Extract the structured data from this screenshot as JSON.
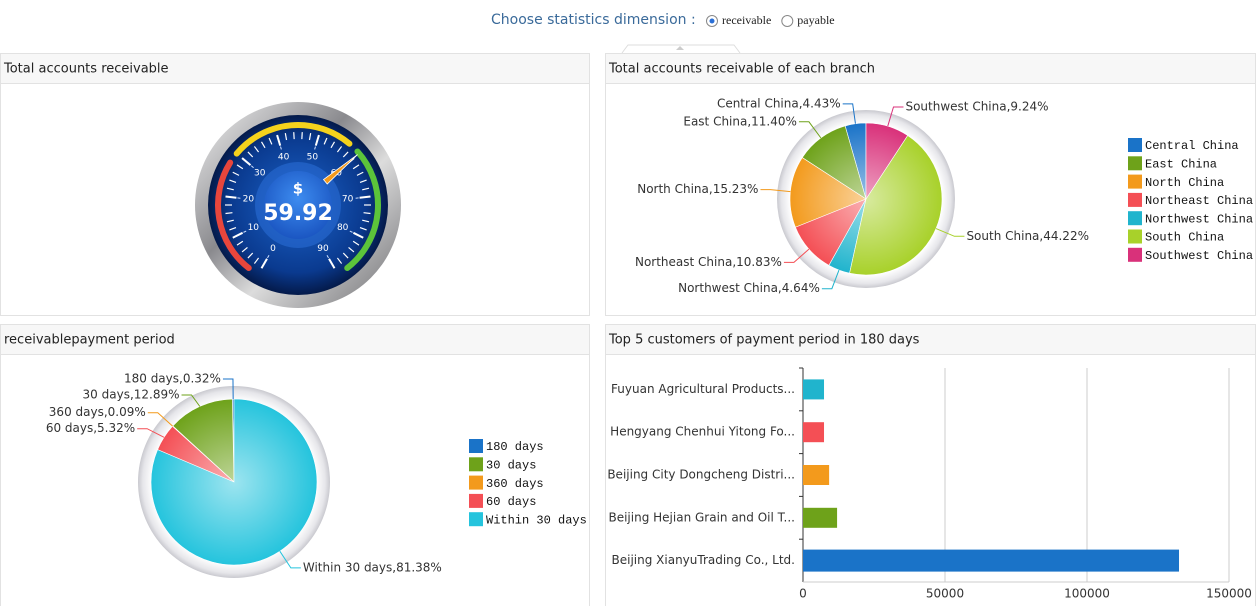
{
  "header": {
    "prompt": "Choose statistics dimension :",
    "options": [
      "receivable",
      "payable"
    ],
    "selected_index": 0
  },
  "chart_data": [
    {
      "type": "gauge",
      "title": "Total accounts receivable",
      "value": 59.92,
      "unit": "$",
      "ylim": [
        0,
        90
      ],
      "yticks": [
        0,
        10,
        20,
        30,
        40,
        50,
        60,
        70,
        80,
        90
      ]
    },
    {
      "type": "pie",
      "title": "Total accounts receivable of each branch",
      "categories": [
        "Central China",
        "East China",
        "North China",
        "Northeast China",
        "Northwest China",
        "South China",
        "Southwest China"
      ],
      "values": [
        4.43,
        11.4,
        15.23,
        10.83,
        4.64,
        44.22,
        9.24
      ],
      "value_labels": [
        "Central China,4.43%",
        "East China,11.40%",
        "North China,15.23%",
        "Northeast China,10.83%",
        "Northwest China,4.64%",
        "South China,44.22%",
        "Southwest China,9.24%"
      ],
      "colors": [
        "#1a73c8",
        "#6ea21a",
        "#f39a1c",
        "#f44f55",
        "#20b4cd",
        "#a8d12a",
        "#d9317a"
      ],
      "legend": "right"
    },
    {
      "type": "pie",
      "title": "receivablepayment period",
      "categories": [
        "180 days",
        "30 days",
        "360 days",
        "60 days",
        "Within 30 days"
      ],
      "values": [
        0.32,
        12.89,
        0.09,
        5.32,
        81.38
      ],
      "value_labels": [
        "180 days,0.32%",
        "30 days,12.89%",
        "360 days,0.09%",
        "60 days,5.32%",
        "Within 30 days,81.38%"
      ],
      "colors": [
        "#1a73c8",
        "#6ea21a",
        "#f39a1c",
        "#f44f55",
        "#25c4dd"
      ],
      "legend": "right"
    },
    {
      "type": "bar",
      "orientation": "horizontal",
      "title": "Top 5 customers of payment period in 180 days",
      "categories": [
        "Fuyuan Agricultural Products...",
        "Hengyang Chenhui Yitong Fo...",
        "Beijing City Dongcheng Distri...",
        "Beijing Hejian Grain and Oil T...",
        "Beijing XianyuTrading Co., Ltd."
      ],
      "values": [
        7400,
        7400,
        9200,
        12000,
        132400
      ],
      "colors": [
        "#20b4cd",
        "#f44f55",
        "#f39a1c",
        "#6ea21a",
        "#1a73c8"
      ],
      "xlim": [
        0,
        150000
      ],
      "xticks": [
        0,
        50000,
        100000,
        150000
      ],
      "grid": true
    }
  ]
}
